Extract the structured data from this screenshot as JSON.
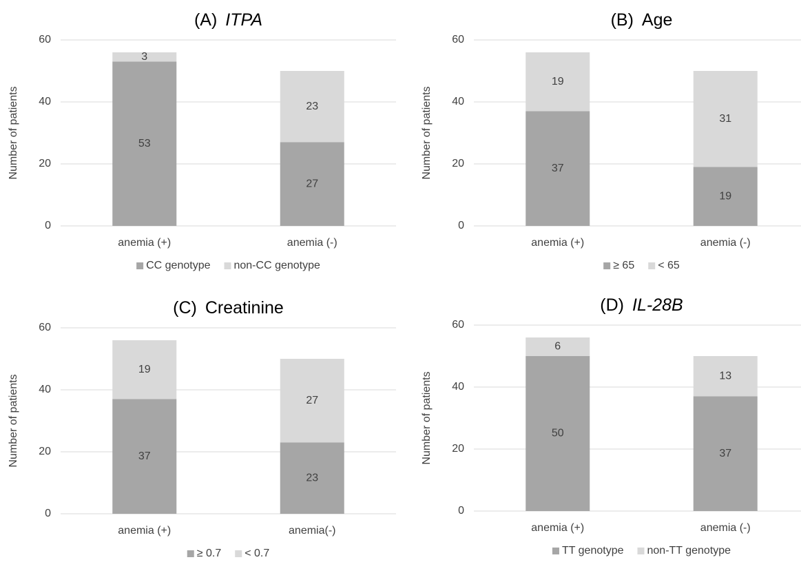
{
  "chart_data": [
    {
      "type": "stacked_bar",
      "panel": "(A)",
      "title": "ITPA",
      "title_italic": true,
      "ylabel": "Number of patients",
      "categories": [
        "anemia (+)",
        "anemia (-)"
      ],
      "series": [
        {
          "name": "CC genotype",
          "color": "#a6a6a6",
          "values": [
            53,
            27
          ]
        },
        {
          "name": "non-CC genotype",
          "color": "#d9d9d9",
          "values": [
            3,
            23
          ]
        }
      ],
      "ylim": [
        0,
        60
      ],
      "yticks": [
        0,
        20,
        40,
        60
      ],
      "grid": true,
      "legend": "bottom"
    },
    {
      "type": "stacked_bar",
      "panel": "(B)",
      "title": "Age",
      "title_italic": false,
      "ylabel": "Number of patients",
      "categories": [
        "anemia (+)",
        "anemia (-)"
      ],
      "series": [
        {
          "name": "≥ 65",
          "color": "#a6a6a6",
          "values": [
            37,
            19
          ]
        },
        {
          "name": "< 65",
          "color": "#d9d9d9",
          "values": [
            19,
            31
          ]
        }
      ],
      "ylim": [
        0,
        60
      ],
      "yticks": [
        0,
        20,
        40,
        60
      ],
      "grid": true,
      "legend": "bottom"
    },
    {
      "type": "stacked_bar",
      "panel": "(C)",
      "title": "Creatinine",
      "title_italic": false,
      "ylabel": "Number of patients",
      "categories": [
        "anemia (+)",
        "anemia(-)"
      ],
      "series": [
        {
          "name": "≥ 0.7",
          "color": "#a6a6a6",
          "values": [
            37,
            23
          ]
        },
        {
          "name": "< 0.7",
          "color": "#d9d9d9",
          "values": [
            19,
            27
          ]
        }
      ],
      "ylim": [
        0,
        60
      ],
      "yticks": [
        0,
        20,
        40,
        60
      ],
      "grid": true,
      "legend": "bottom"
    },
    {
      "type": "stacked_bar",
      "panel": "(D)",
      "title": "IL-28B",
      "title_italic": true,
      "ylabel": "Number of patients",
      "categories": [
        "anemia (+)",
        "anemia (-)"
      ],
      "series": [
        {
          "name": "TT genotype",
          "color": "#a6a6a6",
          "values": [
            50,
            37
          ]
        },
        {
          "name": "non-TT genotype",
          "color": "#d9d9d9",
          "values": [
            6,
            13
          ]
        }
      ],
      "ylim": [
        0,
        60
      ],
      "yticks": [
        0,
        20,
        40,
        60
      ],
      "grid": true,
      "legend": "bottom"
    }
  ]
}
